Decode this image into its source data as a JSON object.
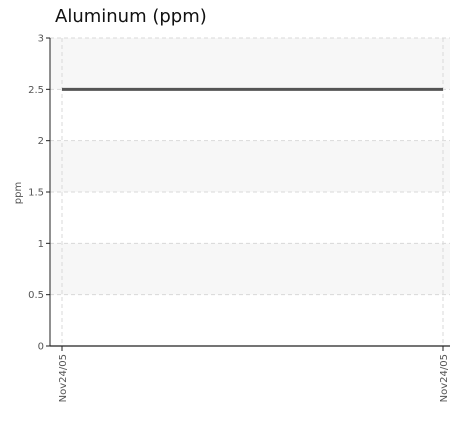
{
  "chart_data": {
    "type": "line",
    "title": "Aluminum (ppm)",
    "ylabel": "ppm",
    "xlabel": "",
    "x": [
      "Nov24/05",
      "Nov24/05"
    ],
    "series": [
      {
        "values": [
          2.5,
          2.5
        ]
      }
    ],
    "ylim": [
      0,
      3
    ],
    "yticks": [
      "0",
      "0.5",
      "1",
      "1.5",
      "2",
      "2.5",
      "3"
    ],
    "grid": true,
    "line_color": "#555555",
    "band_color": "#f7f7f7",
    "grid_color": "#d9d9d9",
    "axis_color": "#222222"
  }
}
